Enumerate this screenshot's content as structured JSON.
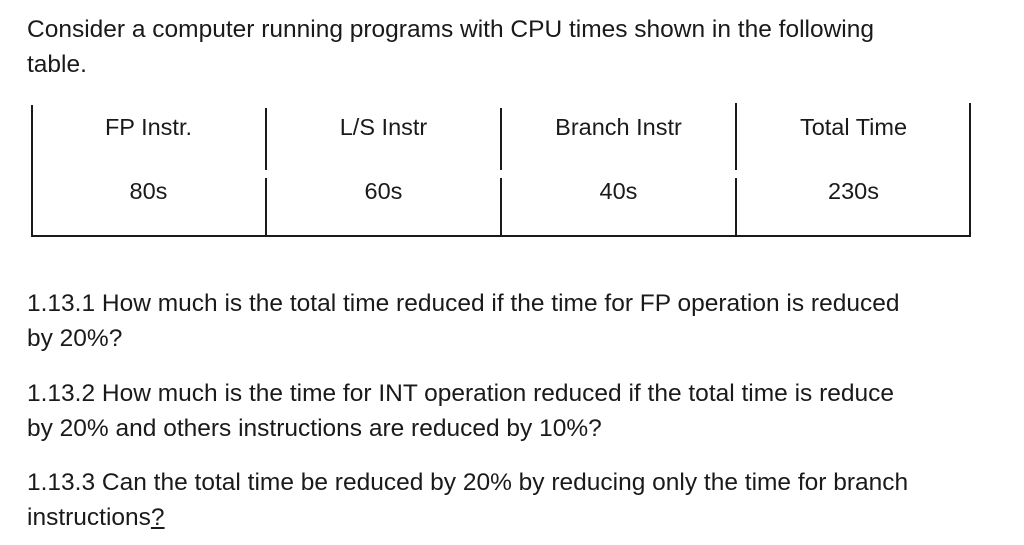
{
  "intro": {
    "line1": "Consider a computer running programs with CPU times shown in the following",
    "line2": "table."
  },
  "table": {
    "headers": [
      "FP Instr.",
      "L/S Instr",
      "Branch Instr",
      "Total Time"
    ],
    "values": [
      "80s",
      "60s",
      "40s",
      "230s"
    ]
  },
  "questions": {
    "q1": {
      "line1": "1.13.1 How much is the total time reduced if the time for FP operation is reduced",
      "line2": "by 20%?"
    },
    "q2": {
      "line1": "1.13.2 How much is the time for INT operation reduced if the total time is reduce",
      "line2": "by 20% and others instructions are reduced by 10%?"
    },
    "q3": {
      "line1": "1.13.3 Can the total time be reduced by 20% by reducing only the time for branch",
      "line2_text": "instructions",
      "line2_mark": "?"
    }
  }
}
